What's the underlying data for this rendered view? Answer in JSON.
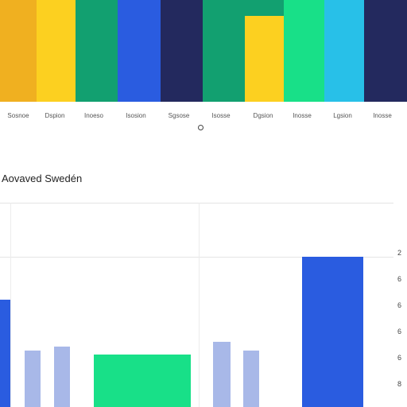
{
  "top_panel": {
    "labels": [
      "Sosnoe",
      "Dspion",
      "Inoeso",
      "Isosion",
      "Sgsose",
      "Isosse",
      "Dgsion",
      "Inosse",
      "Lgsion",
      "Inosse"
    ]
  },
  "bottom_panel": {
    "title": "Aovaved Swedén",
    "ticks": [
      "2",
      "6",
      "6",
      "6",
      "6",
      "8"
    ]
  }
}
